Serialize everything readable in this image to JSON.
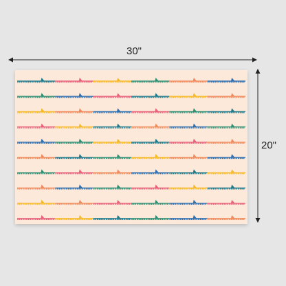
{
  "dimensions": {
    "width_label": "30\"",
    "height_label": "20\""
  },
  "poster": {
    "background": "#fde9d9",
    "palette": [
      "#1f7a8c",
      "#e8607a",
      "#f6b928",
      "#2e8f74",
      "#f08a5d",
      "#2f6fb0"
    ],
    "rows": [
      [
        "#1f7a8c",
        "#e8607a",
        "#f6b928",
        "#2e8f74",
        "#f08a5d",
        "#2f6fb0"
      ],
      [
        "#2e8f74",
        "#2f6fb0",
        "#e8607a",
        "#1f7a8c",
        "#f6b928",
        "#f08a5d"
      ],
      [
        "#f6b928",
        "#f08a5d",
        "#2f6fb0",
        "#e8607a",
        "#2e8f74",
        "#1f7a8c"
      ],
      [
        "#e8607a",
        "#f6b928",
        "#1f7a8c",
        "#f08a5d",
        "#2f6fb0",
        "#2e8f74"
      ],
      [
        "#2f6fb0",
        "#2e8f74",
        "#f6b928",
        "#1f7a8c",
        "#e8607a",
        "#f08a5d"
      ],
      [
        "#f08a5d",
        "#1f7a8c",
        "#2e8f74",
        "#f6b928",
        "#f08a5d",
        "#2f6fb0"
      ],
      [
        "#2e8f74",
        "#e8607a",
        "#f08a5d",
        "#2f6fb0",
        "#1f7a8c",
        "#f6b928"
      ],
      [
        "#f08a5d",
        "#2f6fb0",
        "#2e8f74",
        "#e8607a",
        "#f6b928",
        "#1f7a8c"
      ],
      [
        "#f6b928",
        "#f08a5d",
        "#e8607a",
        "#2e8f74",
        "#2f6fb0",
        "#e8607a"
      ],
      [
        "#e8607a",
        "#f6b928",
        "#1f7a8c",
        "#2e8f74",
        "#2f6fb0",
        "#f08a5d"
      ]
    ]
  }
}
